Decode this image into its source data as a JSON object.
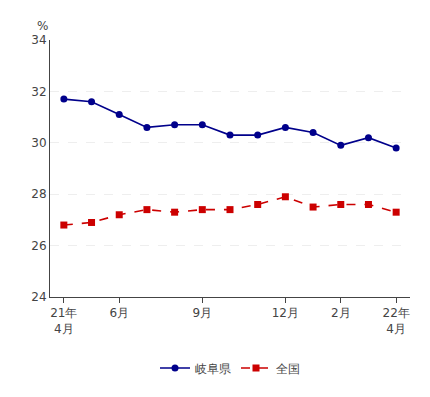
{
  "chart_data": {
    "type": "line",
    "y_label": "%",
    "categories": [
      "21年\n4月",
      null,
      "6月",
      null,
      null,
      "9月",
      null,
      null,
      "12月",
      null,
      "2月",
      null,
      "22年\n4月"
    ],
    "series": [
      {
        "name": "岐阜県",
        "color": "#00008B",
        "marker": "circle",
        "line_style": "solid",
        "values": [
          31.7,
          31.6,
          31.1,
          30.6,
          30.7,
          30.7,
          30.3,
          30.3,
          30.6,
          30.4,
          29.9,
          30.2,
          29.8
        ]
      },
      {
        "name": "全国",
        "color": "#CC0000",
        "marker": "square",
        "line_style": "dashed",
        "values": [
          26.8,
          26.9,
          27.2,
          27.4,
          27.3,
          27.4,
          27.4,
          27.6,
          27.9,
          27.5,
          27.6,
          27.6,
          27.3
        ]
      }
    ],
    "ylim": [
      24,
      34
    ],
    "yticks": [
      24,
      26,
      28,
      30,
      32,
      34
    ],
    "grid": true,
    "legend": "bottom"
  }
}
